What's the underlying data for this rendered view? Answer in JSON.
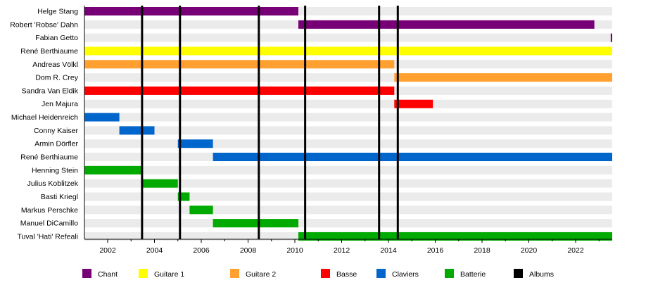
{
  "chart_data": {
    "type": "timeline",
    "title": "",
    "xlabel": "",
    "ylabel": "",
    "xlim": [
      2001.0,
      2023.57
    ],
    "x_ticks": [
      "2002",
      "2004",
      "2006",
      "2008",
      "2010",
      "2012",
      "2014",
      "2016",
      "2018",
      "2020",
      "2022"
    ],
    "colors": {
      "Chant": "#770077",
      "Guitare 1": "#ffff00",
      "Guitare 2": "#ffa030",
      "Basse": "#ff0000",
      "Claviers": "#0066cc",
      "Batterie": "#00aa00",
      "Albums": "#000000"
    },
    "legend": [
      "Chant",
      "Guitare 1",
      "Guitare 2",
      "Basse",
      "Claviers",
      "Batterie",
      "Albums"
    ],
    "legend_placement": "bottom",
    "albums": [
      2003.47,
      2005.09,
      2008.46,
      2010.44,
      2013.6,
      2014.4
    ],
    "members": [
      {
        "name": "Helge Stang",
        "role": "Chant",
        "start": 2001.0,
        "end": 2010.15
      },
      {
        "name": "Robert 'Robse' Dahn",
        "role": "Chant",
        "start": 2010.15,
        "end": 2022.8
      },
      {
        "name": "Fabian Getto",
        "role": "Chant",
        "start": 2023.5,
        "end": 2023.57
      },
      {
        "name": "René Berthiaume",
        "role": "Guitare 1",
        "start": 2001.0,
        "end": 2023.57
      },
      {
        "name": "Andreas Völkl",
        "role": "Guitare 2",
        "start": 2001.0,
        "end": 2014.25
      },
      {
        "name": "Dom R. Crey",
        "role": "Guitare 2",
        "start": 2014.25,
        "end": 2023.57
      },
      {
        "name": "Sandra Van Eldik",
        "role": "Basse",
        "start": 2001.0,
        "end": 2014.25
      },
      {
        "name": "Jen Majura",
        "role": "Basse",
        "start": 2014.25,
        "end": 2015.9
      },
      {
        "name": "Michael Heidenreich",
        "role": "Claviers",
        "start": 2001.0,
        "end": 2002.5
      },
      {
        "name": "Conny Kaiser",
        "role": "Claviers",
        "start": 2002.5,
        "end": 2004.0
      },
      {
        "name": "Armin Dörfler",
        "role": "Claviers",
        "start": 2005.0,
        "end": 2006.5
      },
      {
        "name": "René Berthiaume",
        "role": "Claviers",
        "start": 2006.5,
        "end": 2023.57
      },
      {
        "name": "Henning Stein",
        "role": "Batterie",
        "start": 2001.0,
        "end": 2003.5
      },
      {
        "name": "Julius Koblitzek",
        "role": "Batterie",
        "start": 2003.5,
        "end": 2005.0
      },
      {
        "name": "Basti Kriegl",
        "role": "Batterie",
        "start": 2005.0,
        "end": 2005.5
      },
      {
        "name": "Markus Perschke",
        "role": "Batterie",
        "start": 2005.5,
        "end": 2006.5
      },
      {
        "name": "Manuel DiCamillo",
        "role": "Batterie",
        "start": 2006.5,
        "end": 2010.15
      },
      {
        "name": "Tuval 'Hati' Refeali",
        "role": "Batterie",
        "start": 2010.15,
        "end": 2023.57
      }
    ]
  }
}
